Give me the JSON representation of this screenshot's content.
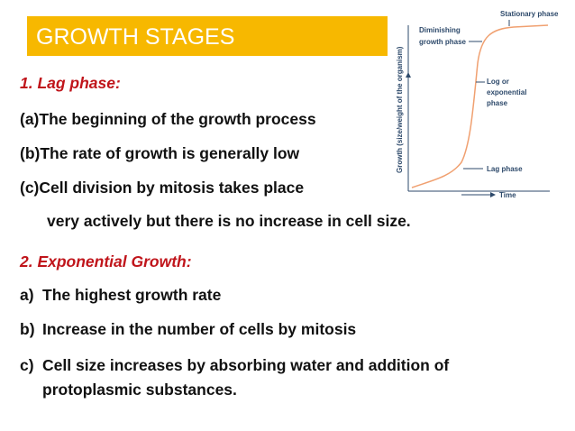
{
  "title": "GROWTH STAGES",
  "sections": [
    {
      "heading": "1.  Lag phase:",
      "items": [
        {
          "lines": [
            "(a)The beginning of the growth process"
          ]
        },
        {
          "lines": [
            "(b)The rate of growth is generally low"
          ]
        },
        {
          "lines": [
            "(c)Cell division by mitosis takes place",
            "very actively but there is no increase in cell size."
          ]
        }
      ]
    },
    {
      "heading": "2.   Exponential Growth:",
      "items": [
        {
          "marker": "a)",
          "lines": [
            "The highest growth rate"
          ]
        },
        {
          "marker": "b)",
          "lines": [
            "Increase in the number of cells by mitosis"
          ]
        },
        {
          "marker": "c)",
          "lines": [
            "Cell size increases by absorbing water and addition of",
            "protoplasmic substances."
          ]
        }
      ]
    }
  ],
  "diagram": {
    "y_axis_label": "Growth (size/weight of the organism)",
    "x_axis_label": "Time",
    "labels": {
      "stationary": [
        "Stationary phase"
      ],
      "diminishing": [
        "Diminishing",
        "growth phase"
      ],
      "log": [
        "Log or",
        "exponential",
        "phase"
      ],
      "lag": [
        "Lag phase"
      ]
    }
  }
}
